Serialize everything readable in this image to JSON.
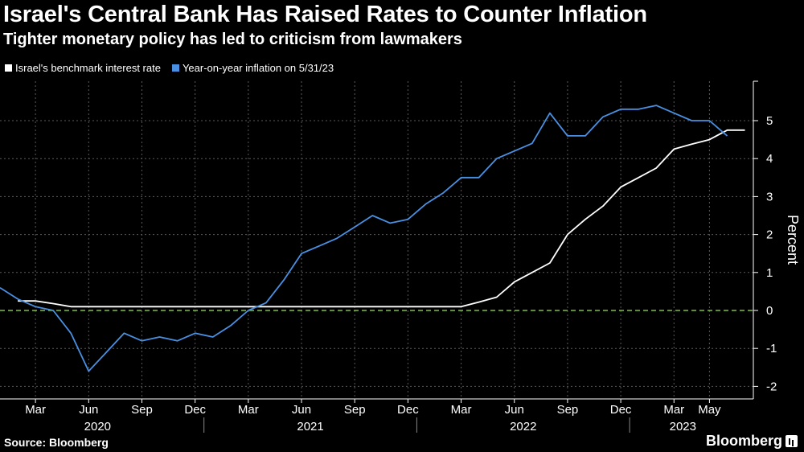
{
  "header": {
    "title": "Israel's Central Bank Has Raised Rates to Counter Inflation",
    "subtitle": "Tighter monetary policy has led to criticism from lawmakers"
  },
  "footer": {
    "source": "Source: Bloomberg",
    "brand": "Bloomberg"
  },
  "colors": {
    "rate": "#ffffff",
    "inflation": "#4a90e2",
    "zero_line": "#7fbf3f",
    "grid": "#5a5a5a",
    "background": "#000000"
  },
  "chart_data": {
    "type": "line",
    "title": "Israel's Central Bank Has Raised Rates to Counter Inflation",
    "ylabel": "Percent",
    "xlabel": "",
    "ylim": [
      -2.2,
      6
    ],
    "yticks": [
      5,
      4,
      3,
      2,
      1,
      0,
      -1,
      -2
    ],
    "xlim": [
      0,
      42.5
    ],
    "x_unit": "months since 2020-01",
    "month_ticks": [
      {
        "x": 2,
        "label": "Mar"
      },
      {
        "x": 5,
        "label": "Jun"
      },
      {
        "x": 8,
        "label": "Sep"
      },
      {
        "x": 11,
        "label": "Dec"
      },
      {
        "x": 14,
        "label": "Mar"
      },
      {
        "x": 17,
        "label": "Jun"
      },
      {
        "x": 20,
        "label": "Sep"
      },
      {
        "x": 23,
        "label": "Dec"
      },
      {
        "x": 26,
        "label": "Mar"
      },
      {
        "x": 29,
        "label": "Jun"
      },
      {
        "x": 32,
        "label": "Sep"
      },
      {
        "x": 35,
        "label": "Dec"
      },
      {
        "x": 38,
        "label": "Mar"
      },
      {
        "x": 40,
        "label": "May"
      }
    ],
    "year_labels": [
      {
        "x": 5.5,
        "label": "2020"
      },
      {
        "x": 17.5,
        "label": "2021"
      },
      {
        "x": 29.5,
        "label": "2022"
      },
      {
        "x": 38.5,
        "label": "2023"
      }
    ],
    "year_separators": [
      11.5,
      23.5,
      35.5
    ],
    "vertical_gridlines": [
      2,
      5,
      8,
      11,
      14,
      17,
      20,
      23,
      26,
      29,
      32,
      35,
      38,
      40
    ],
    "reference_line": {
      "y": 0,
      "style": "dashed"
    },
    "series": [
      {
        "name": "Israel's benchmark interest rate",
        "color": "#ffffff",
        "points": [
          [
            1,
            0.25
          ],
          [
            2,
            0.25
          ],
          [
            3,
            0.18
          ],
          [
            4,
            0.1
          ],
          [
            5,
            0.1
          ],
          [
            10,
            0.1
          ],
          [
            15,
            0.1
          ],
          [
            20,
            0.1
          ],
          [
            25,
            0.1
          ],
          [
            26,
            0.1
          ],
          [
            27,
            0.22
          ],
          [
            28,
            0.35
          ],
          [
            29,
            0.75
          ],
          [
            30,
            1.0
          ],
          [
            31,
            1.25
          ],
          [
            32,
            2.0
          ],
          [
            33,
            2.4
          ],
          [
            34,
            2.75
          ],
          [
            35,
            3.25
          ],
          [
            36,
            3.5
          ],
          [
            37,
            3.75
          ],
          [
            38,
            4.25
          ],
          [
            39,
            4.38
          ],
          [
            40,
            4.5
          ],
          [
            41,
            4.75
          ],
          [
            42,
            4.75
          ]
        ]
      },
      {
        "name": "Year-on-year inflation on 5/31/23",
        "color": "#4a90e2",
        "points": [
          [
            0,
            0.6
          ],
          [
            1,
            0.3
          ],
          [
            2,
            0.1
          ],
          [
            3,
            0.0
          ],
          [
            4,
            -0.6
          ],
          [
            5,
            -1.6
          ],
          [
            6,
            -1.1
          ],
          [
            7,
            -0.6
          ],
          [
            8,
            -0.8
          ],
          [
            9,
            -0.7
          ],
          [
            10,
            -0.8
          ],
          [
            11,
            -0.6
          ],
          [
            12,
            -0.7
          ],
          [
            13,
            -0.4
          ],
          [
            14,
            0.0
          ],
          [
            15,
            0.2
          ],
          [
            16,
            0.8
          ],
          [
            17,
            1.5
          ],
          [
            18,
            1.7
          ],
          [
            19,
            1.9
          ],
          [
            20,
            2.2
          ],
          [
            21,
            2.5
          ],
          [
            22,
            2.3
          ],
          [
            23,
            2.4
          ],
          [
            24,
            2.8
          ],
          [
            25,
            3.1
          ],
          [
            26,
            3.5
          ],
          [
            27,
            3.5
          ],
          [
            28,
            4.0
          ],
          [
            29,
            4.2
          ],
          [
            30,
            4.4
          ],
          [
            31,
            5.2
          ],
          [
            32,
            4.6
          ],
          [
            33,
            4.6
          ],
          [
            34,
            5.1
          ],
          [
            35,
            5.3
          ],
          [
            36,
            5.3
          ],
          [
            37,
            5.4
          ],
          [
            38,
            5.2
          ],
          [
            39,
            5.0
          ],
          [
            40,
            5.0
          ],
          [
            41,
            4.6
          ]
        ]
      }
    ]
  }
}
